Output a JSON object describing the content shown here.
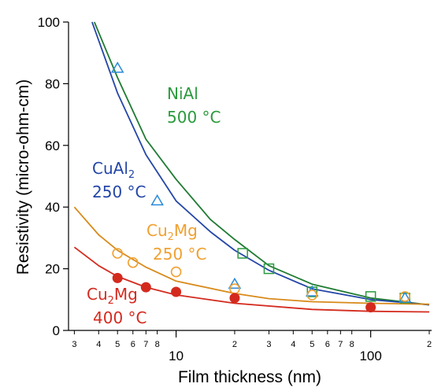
{
  "chart_data": {
    "type": "line",
    "xlabel": "Film thickness (nm)",
    "ylabel": "Resistivity (micro-ohm-cm)",
    "xscale": "log",
    "xlim": [
      2.8,
      200
    ],
    "ylim": [
      0,
      100
    ],
    "grid": false,
    "yticks": [
      0,
      20,
      40,
      60,
      80,
      100
    ],
    "xticks_major": [
      {
        "value": 10,
        "label": "10"
      },
      {
        "value": 100,
        "label": "100"
      }
    ],
    "xticks_minor": [
      {
        "value": 3,
        "label": "3"
      },
      {
        "value": 4,
        "label": "4"
      },
      {
        "value": 5,
        "label": "5"
      },
      {
        "value": 6,
        "label": "6"
      },
      {
        "value": 7,
        "label": "7"
      },
      {
        "value": 8,
        "label": "8"
      },
      {
        "value": 20,
        "label": "2"
      },
      {
        "value": 30,
        "label": "3"
      },
      {
        "value": 40,
        "label": "4"
      },
      {
        "value": 50,
        "label": "5"
      },
      {
        "value": 60,
        "label": "6"
      },
      {
        "value": 70,
        "label": "7"
      },
      {
        "value": 80,
        "label": "8"
      },
      {
        "value": 200,
        "label": "2"
      }
    ],
    "series": [
      {
        "key": "nial",
        "color": "#1e7b32",
        "marker": "square",
        "annotation": {
          "line1": "NiAl",
          "line2": "500 °C"
        },
        "curve": [
          [
            3.8,
            100
          ],
          [
            5,
            82
          ],
          [
            7,
            62
          ],
          [
            10,
            49
          ],
          [
            15,
            36
          ],
          [
            20,
            29.5
          ],
          [
            30,
            21
          ],
          [
            50,
            15
          ],
          [
            100,
            10.5
          ],
          [
            200,
            8.3
          ]
        ],
        "points": [
          [
            22,
            25
          ],
          [
            30,
            20
          ],
          [
            50,
            12.5
          ],
          [
            100,
            11
          ],
          [
            150,
            10.5
          ]
        ]
      },
      {
        "key": "cual2",
        "color": "#2446a8",
        "marker": "triangle",
        "marker_color": "#2a8ad8",
        "annotation": {
          "line1": "CuAl",
          "sub": "2",
          "line2": "250 °C"
        },
        "curve": [
          [
            3.7,
            100
          ],
          [
            5,
            77
          ],
          [
            7,
            57
          ],
          [
            10,
            42
          ],
          [
            15,
            32
          ],
          [
            20,
            26
          ],
          [
            30,
            19.5
          ],
          [
            50,
            13.5
          ],
          [
            100,
            10
          ],
          [
            200,
            8.3
          ]
        ],
        "points": [
          [
            5,
            85
          ],
          [
            8,
            42
          ],
          [
            20,
            15
          ],
          [
            50,
            12.5
          ],
          [
            150,
            10.5
          ]
        ]
      },
      {
        "key": "cu2mg250",
        "color": "#d88a1a",
        "marker": "circle-open",
        "marker_color": "#f0a030",
        "annotation": {
          "line1a": "Cu",
          "sub": "2",
          "line1b": "Mg",
          "line2": "250 °C"
        },
        "curve": [
          [
            3,
            40
          ],
          [
            4,
            31
          ],
          [
            5,
            26
          ],
          [
            7,
            20.5
          ],
          [
            10,
            16
          ],
          [
            20,
            12
          ],
          [
            30,
            10.3
          ],
          [
            50,
            9.3
          ],
          [
            100,
            8.8
          ],
          [
            200,
            8.5
          ]
        ],
        "points": [
          [
            5,
            25
          ],
          [
            6,
            22
          ],
          [
            10,
            19
          ],
          [
            20,
            13.5
          ],
          [
            50,
            11.5
          ],
          [
            150,
            11
          ]
        ]
      },
      {
        "key": "cu2mg400",
        "color": "#d42a1e",
        "marker": "circle-filled",
        "annotation": {
          "line1a": "Cu",
          "sub": "2",
          "line1b": "Mg",
          "line2": "400 °C"
        },
        "curve": [
          [
            3,
            27
          ],
          [
            4,
            21
          ],
          [
            5,
            17.5
          ],
          [
            7,
            14
          ],
          [
            10,
            11.5
          ],
          [
            20,
            8.8
          ],
          [
            50,
            6.8
          ],
          [
            100,
            6.2
          ],
          [
            200,
            6
          ]
        ],
        "points": [
          [
            5,
            17
          ],
          [
            7,
            14
          ],
          [
            10,
            12.5
          ],
          [
            20,
            10.5
          ],
          [
            100,
            7.5
          ]
        ]
      }
    ]
  }
}
